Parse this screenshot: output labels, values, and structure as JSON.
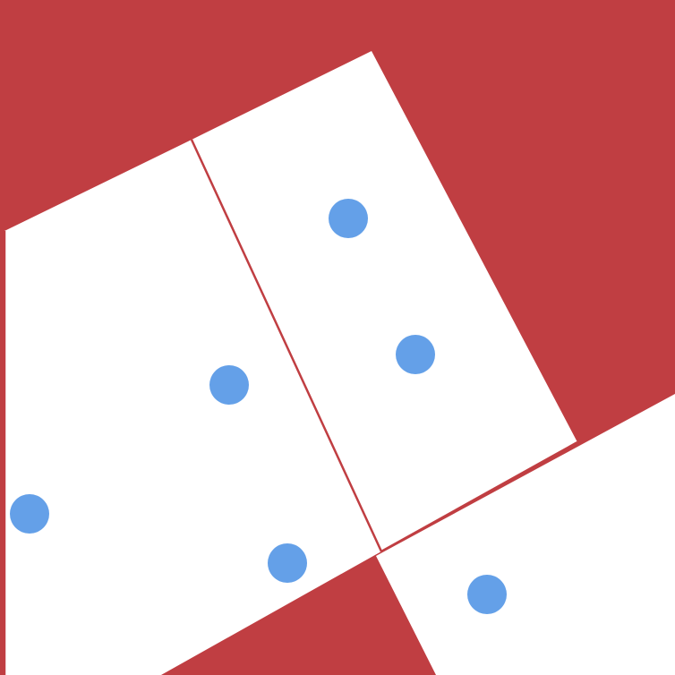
{
  "colors": {
    "background": "#c03e42",
    "panel": "#ffffff",
    "panel_edge": "#c03e42",
    "dot": "#64a0e8"
  },
  "shapes": {
    "panel_count": 3,
    "dot_count": 6
  }
}
